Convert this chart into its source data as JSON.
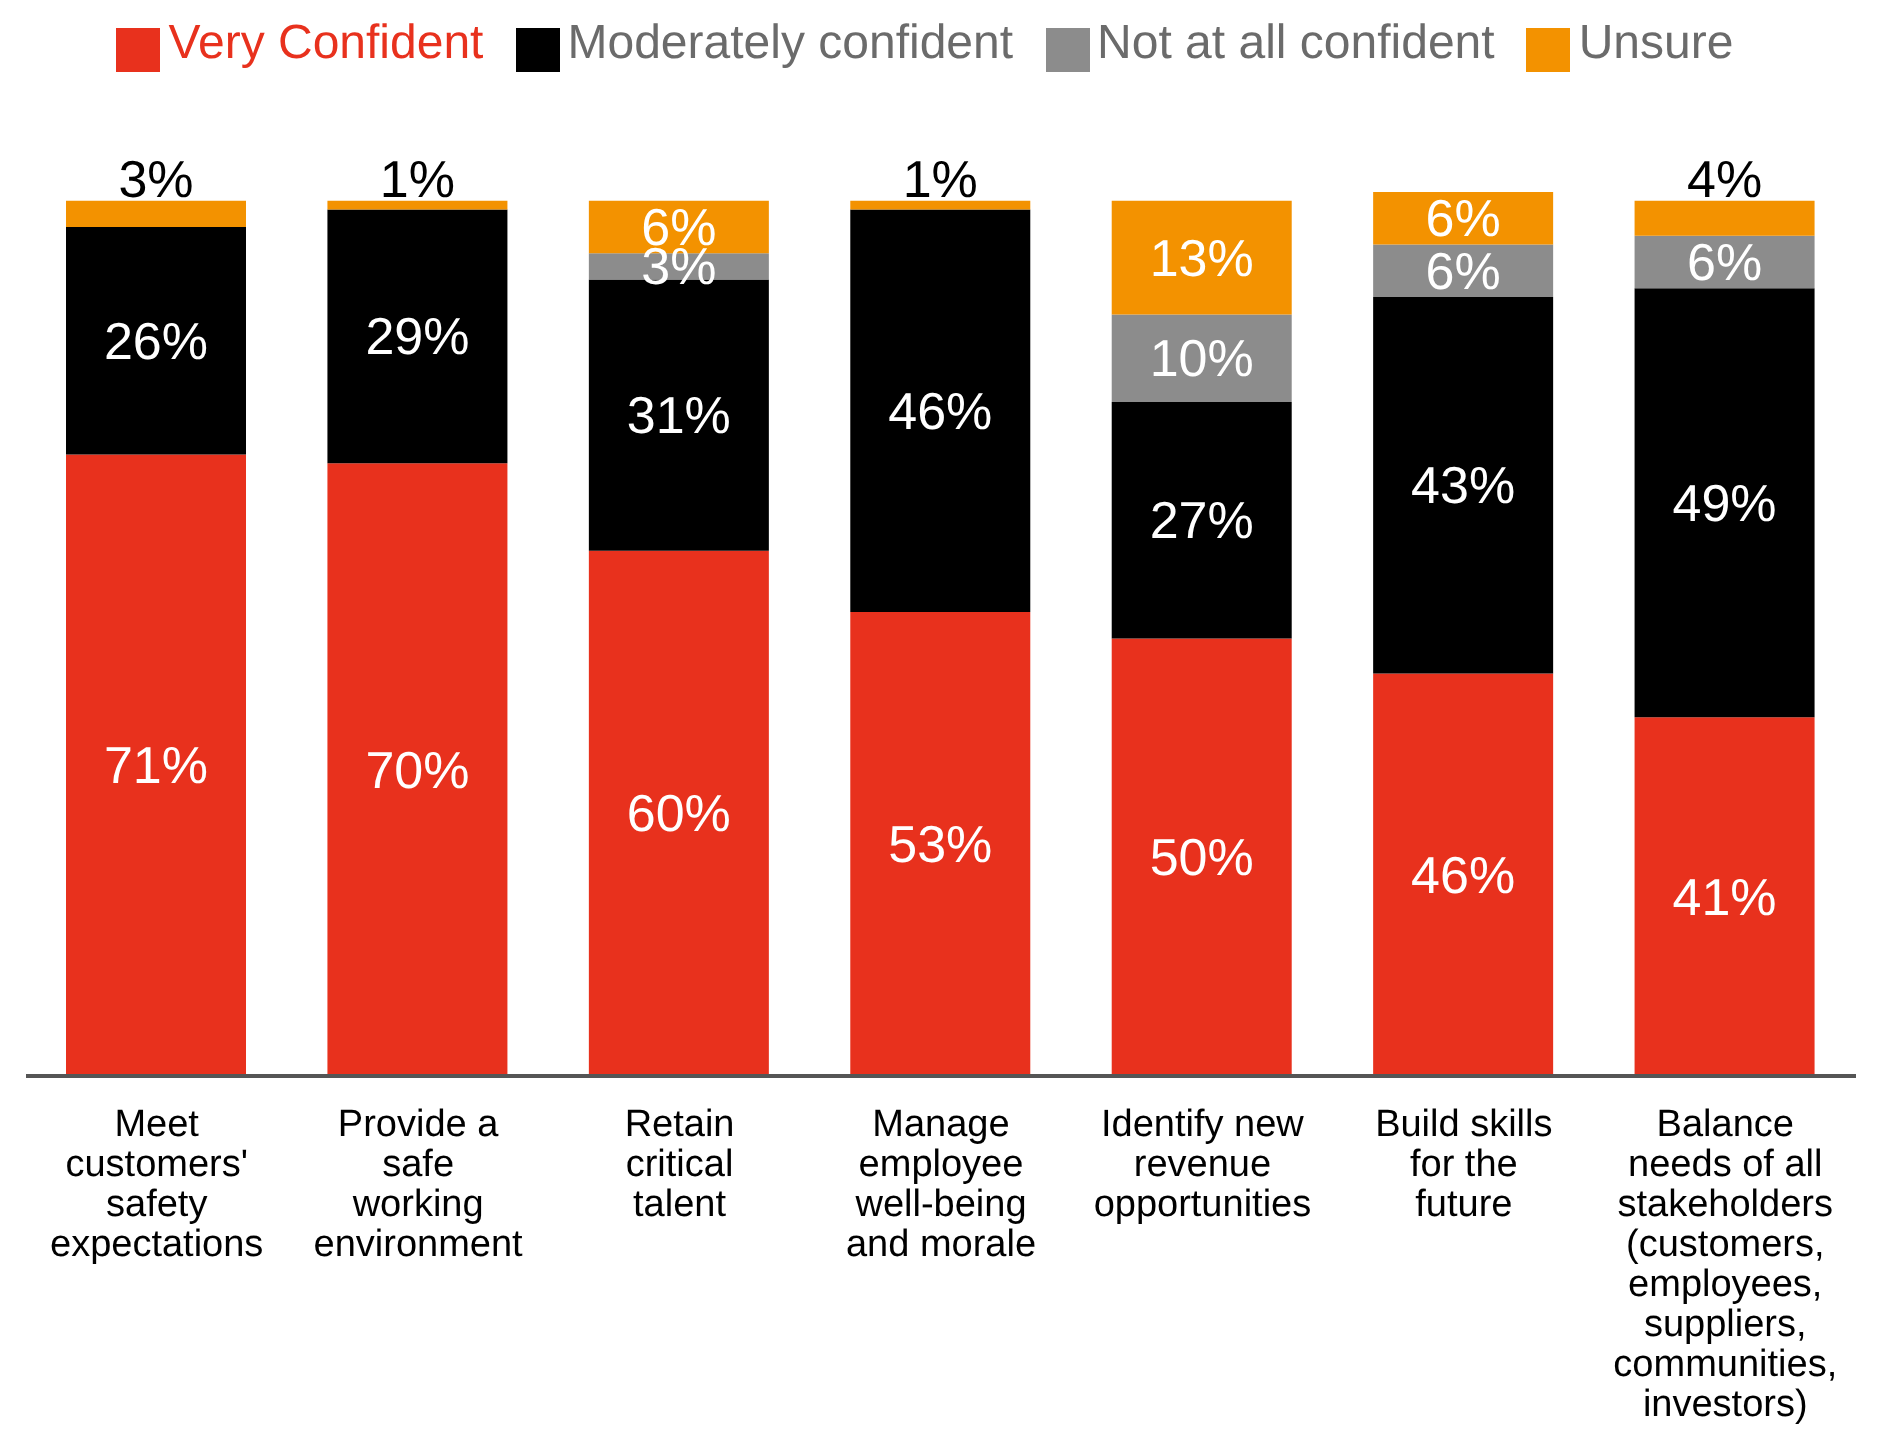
{
  "chart_data": {
    "type": "bar",
    "stacked": true,
    "legend": "top",
    "categories": [
      "Meet\ncustomers'\nsafety\nexpectations",
      "Provide a\nsafe\nworking\nenvironment",
      "Retain\ncritical\ntalent",
      "Manage\nemployee\nwell-being\nand morale",
      "Identify new\nrevenue\nopportunities",
      "Build skills\nfor the\nfuture",
      "Balance\nneeds of all\nstakeholders\n(customers,\nemployees,\nsuppliers,\ncommunities,\ninvestors)"
    ],
    "series": [
      {
        "name": "Very Confident",
        "color": "#e8311d",
        "values": [
          71,
          70,
          60,
          53,
          50,
          46,
          41
        ],
        "value_labels": [
          "71%",
          "70%",
          "60%",
          "53%",
          "50%",
          "46%",
          "41%"
        ]
      },
      {
        "name": "Moderately confident",
        "color": "#000000",
        "values": [
          26,
          29,
          31,
          46,
          27,
          43,
          49
        ],
        "value_labels": [
          "26%",
          "29%",
          "31%",
          "46%",
          "27%",
          "43%",
          "49%"
        ]
      },
      {
        "name": "Not at all confident",
        "color": "#8c8c8c",
        "values": [
          null,
          null,
          3,
          null,
          10,
          6,
          6
        ],
        "value_labels": [
          null,
          null,
          "3%",
          null,
          "10%",
          "6%",
          "6%"
        ]
      },
      {
        "name": "Unsure",
        "color": "#f39200",
        "values": [
          3,
          1,
          6,
          1,
          13,
          6,
          4
        ],
        "value_labels": [
          "3%",
          "1%",
          "6%",
          "1%",
          "13%",
          "6%",
          "4%"
        ]
      }
    ]
  }
}
